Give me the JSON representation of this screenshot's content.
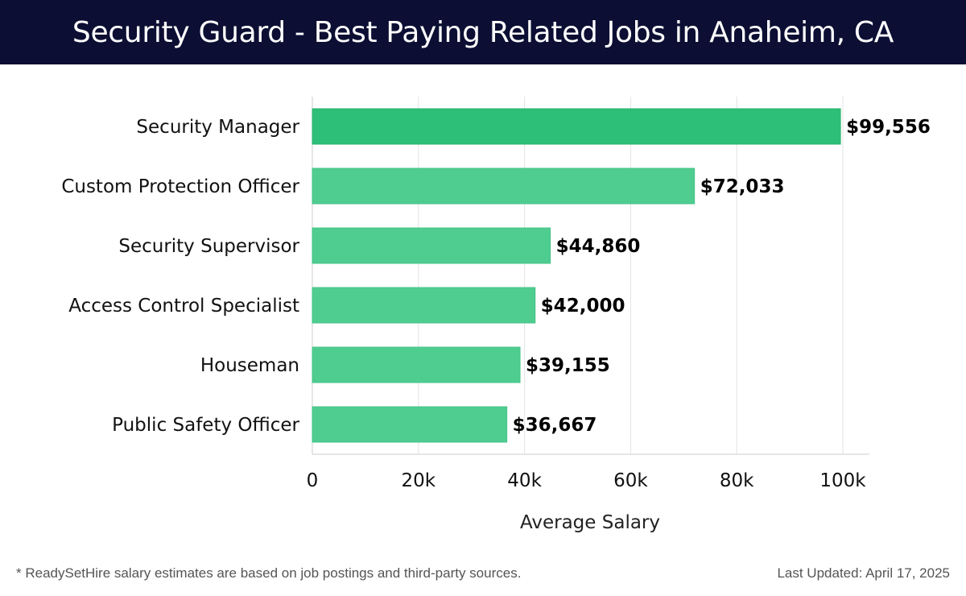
{
  "header": {
    "title": "Security Guard - Best Paying Related Jobs in Anaheim, CA"
  },
  "footer": {
    "note": "* ReadySetHire salary estimates are based on job postings and third-party sources.",
    "updated": "Last Updated: April 17, 2025"
  },
  "colors": {
    "header_bg": "#0c0f33",
    "bar_top": "#2dbf78",
    "bar": "#4fcc90",
    "grid": "#e3e3e3"
  },
  "chart_data": {
    "type": "bar",
    "orientation": "horizontal",
    "categories": [
      "Security Manager",
      "Custom Protection Officer",
      "Security Supervisor",
      "Access Control Specialist",
      "Houseman",
      "Public Safety Officer"
    ],
    "values": [
      99556,
      72033,
      44860,
      42000,
      39155,
      36667
    ],
    "value_labels": [
      "$99,556",
      "$72,033",
      "$44,860",
      "$42,000",
      "$39,155",
      "$36,667"
    ],
    "xlabel": "Average Salary",
    "ylabel": "",
    "xlim": [
      0,
      105000
    ],
    "xticks": [
      0,
      20000,
      40000,
      60000,
      80000,
      100000
    ],
    "xtick_labels": [
      "0",
      "20k",
      "40k",
      "60k",
      "80k",
      "100k"
    ],
    "grid": true
  }
}
